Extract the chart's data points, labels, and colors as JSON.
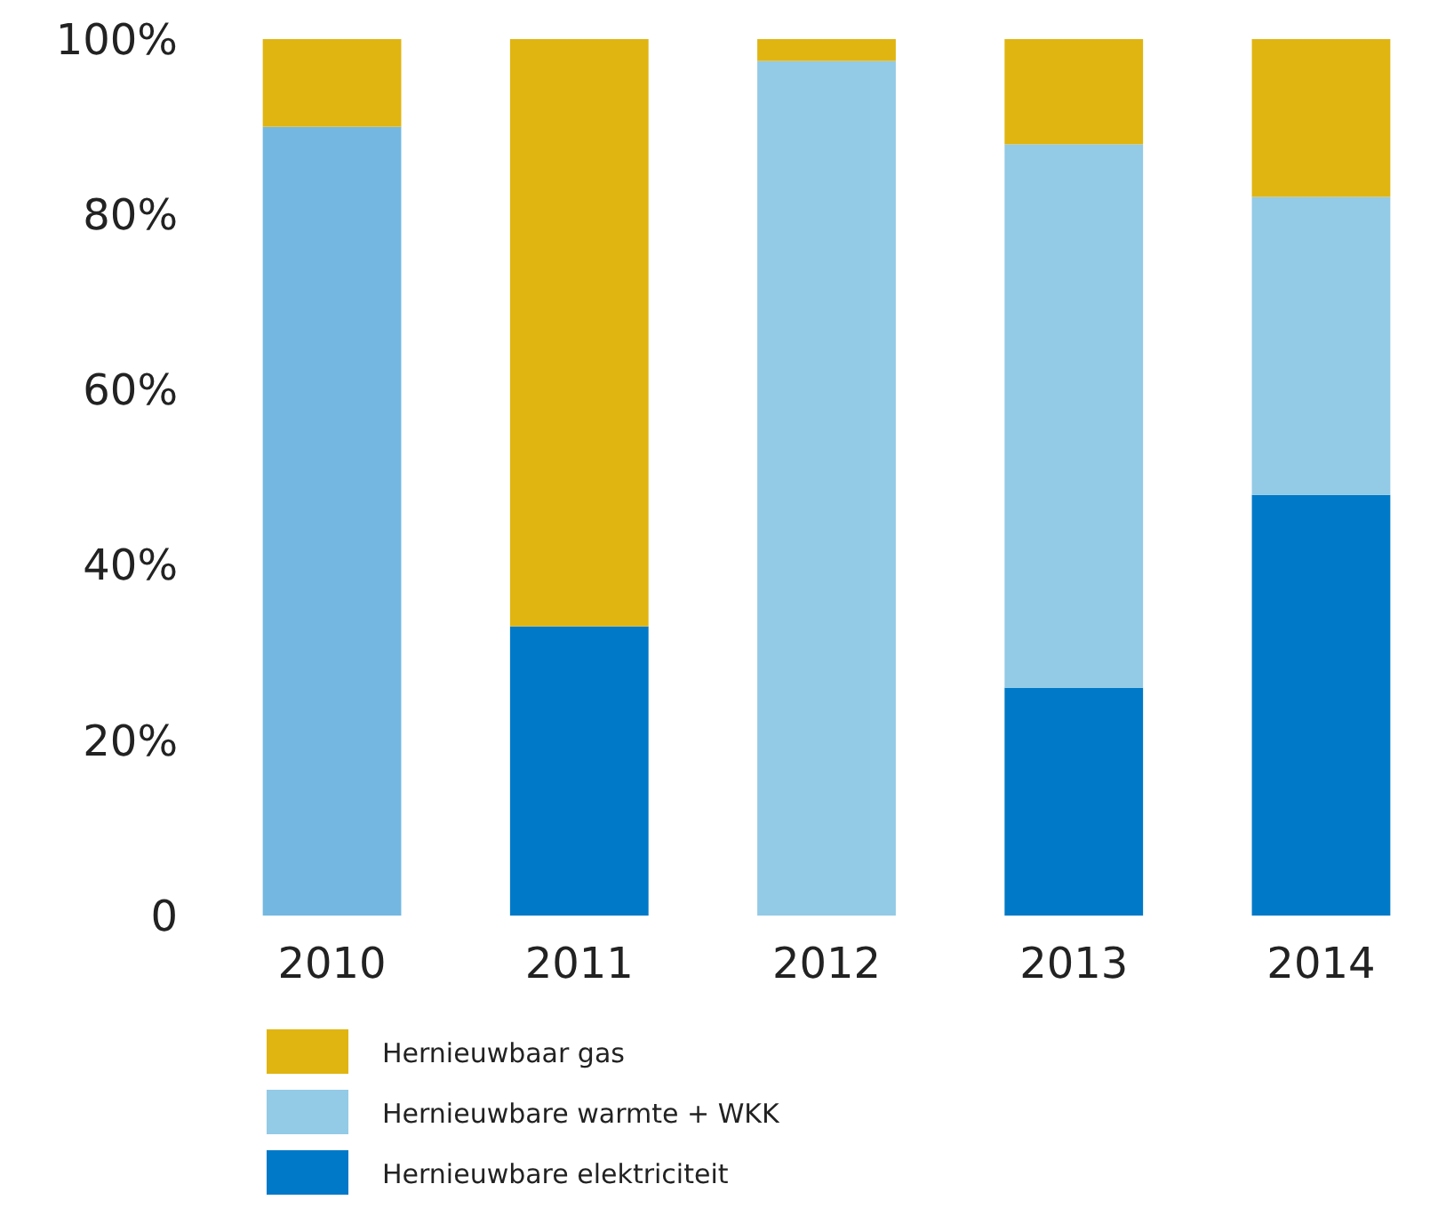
{
  "chart_data": {
    "type": "bar",
    "stacked": true,
    "categories": [
      "2010",
      "2011",
      "2012",
      "2013",
      "2014"
    ],
    "series": [
      {
        "name": "Hernieuwbare elektriciteit",
        "color": "#0079c8",
        "values": [
          0,
          33,
          0,
          26,
          48
        ]
      },
      {
        "name": "Hernieuwbare warmte + WKK",
        "color": "#93cae6",
        "colors": [
          "#74b8e1",
          "#93cae6",
          "#93cae6",
          "#93cae6",
          "#93cae6"
        ],
        "values": [
          90,
          0,
          97.5,
          62,
          34
        ]
      },
      {
        "name": "Hernieuwbaar gas",
        "color": "#e0b511",
        "values": [
          10,
          67,
          2.5,
          12,
          18
        ]
      }
    ],
    "ylim": [
      0,
      100
    ],
    "yticks": [
      {
        "value": 0,
        "label": "0"
      },
      {
        "value": 20,
        "label": "20%"
      },
      {
        "value": 40,
        "label": "40%"
      },
      {
        "value": 60,
        "label": "60%"
      },
      {
        "value": 80,
        "label": "80%"
      },
      {
        "value": 100,
        "label": "100%"
      }
    ],
    "grid": false,
    "legend": "bottom"
  }
}
